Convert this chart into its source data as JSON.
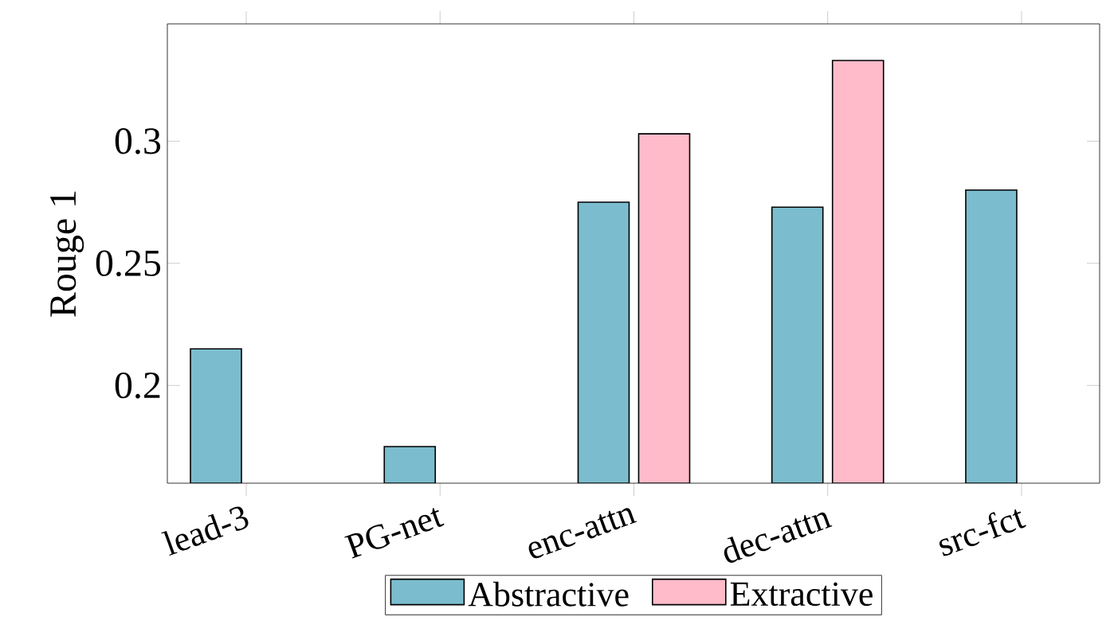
{
  "chart_data": {
    "type": "bar",
    "ylabel": "Rouge 1",
    "categories": [
      "lead-3",
      "PG-net",
      "enc-attn",
      "dec-attn",
      "src-fct"
    ],
    "series": [
      {
        "name": "Abstractive",
        "color": "#7bbdce",
        "values": [
          0.215,
          0.175,
          0.275,
          0.273,
          0.28
        ]
      },
      {
        "name": "Extractive",
        "color": "#ffbbc9",
        "values": [
          null,
          null,
          0.303,
          0.333,
          null
        ]
      }
    ],
    "ylim": [
      0.16,
      0.348
    ],
    "yticks": [
      0.2,
      0.25,
      0.3
    ],
    "grid": false,
    "legend": "bottom"
  }
}
